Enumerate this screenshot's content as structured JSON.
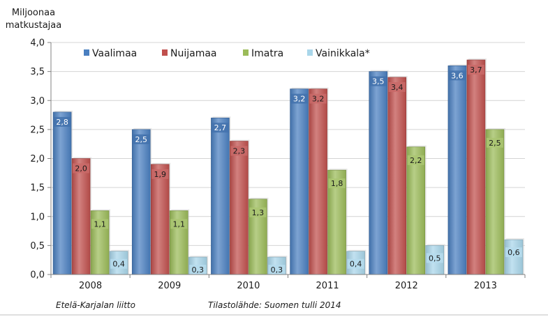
{
  "chart_data": {
    "type": "bar",
    "ylabel": "Miljoonaa matkustajaa",
    "ylabel_lines": [
      "Miljoonaa",
      "matkustajaa"
    ],
    "categories": [
      "2008",
      "2009",
      "2010",
      "2011",
      "2012",
      "2013"
    ],
    "ylim": [
      0,
      4
    ],
    "yticks": [
      "0,0",
      "0,5",
      "1,0",
      "1,5",
      "2,0",
      "2,5",
      "3,0",
      "3,5",
      "4,0"
    ],
    "grid": true,
    "legend_position": "top-left",
    "series": [
      {
        "name": "Vaalimaa",
        "color": "#4a7fc0",
        "values": [
          2.8,
          2.5,
          2.7,
          3.2,
          3.5,
          3.6
        ],
        "labels": [
          "2,8",
          "2,5",
          "2,7",
          "3,2",
          "3,5",
          "3,6"
        ]
      },
      {
        "name": "Nuijamaa",
        "color": "#c0504d",
        "values": [
          2.0,
          1.9,
          2.3,
          3.2,
          3.4,
          3.7
        ],
        "labels": [
          "2,0",
          "1,9",
          "2,3",
          "3,2",
          "3,4",
          "3,7"
        ]
      },
      {
        "name": "Imatra",
        "color": "#9bbb59",
        "values": [
          1.1,
          1.1,
          1.3,
          1.8,
          2.2,
          2.5
        ],
        "labels": [
          "1,1",
          "1,1",
          "1,3",
          "1,8",
          "2,2",
          "2,5"
        ]
      },
      {
        "name": "Vainikkala*",
        "color": "#a9d6ea",
        "values": [
          0.4,
          0.3,
          0.3,
          0.4,
          0.5,
          0.6
        ],
        "labels": [
          "0,4",
          "0,3",
          "0,3",
          "0,4",
          "0,5",
          "0,6"
        ]
      }
    ],
    "footer_left": "Etelä-Karjalan liitto",
    "footer_right": "Tilastolähde: Suomen tulli 2014"
  }
}
